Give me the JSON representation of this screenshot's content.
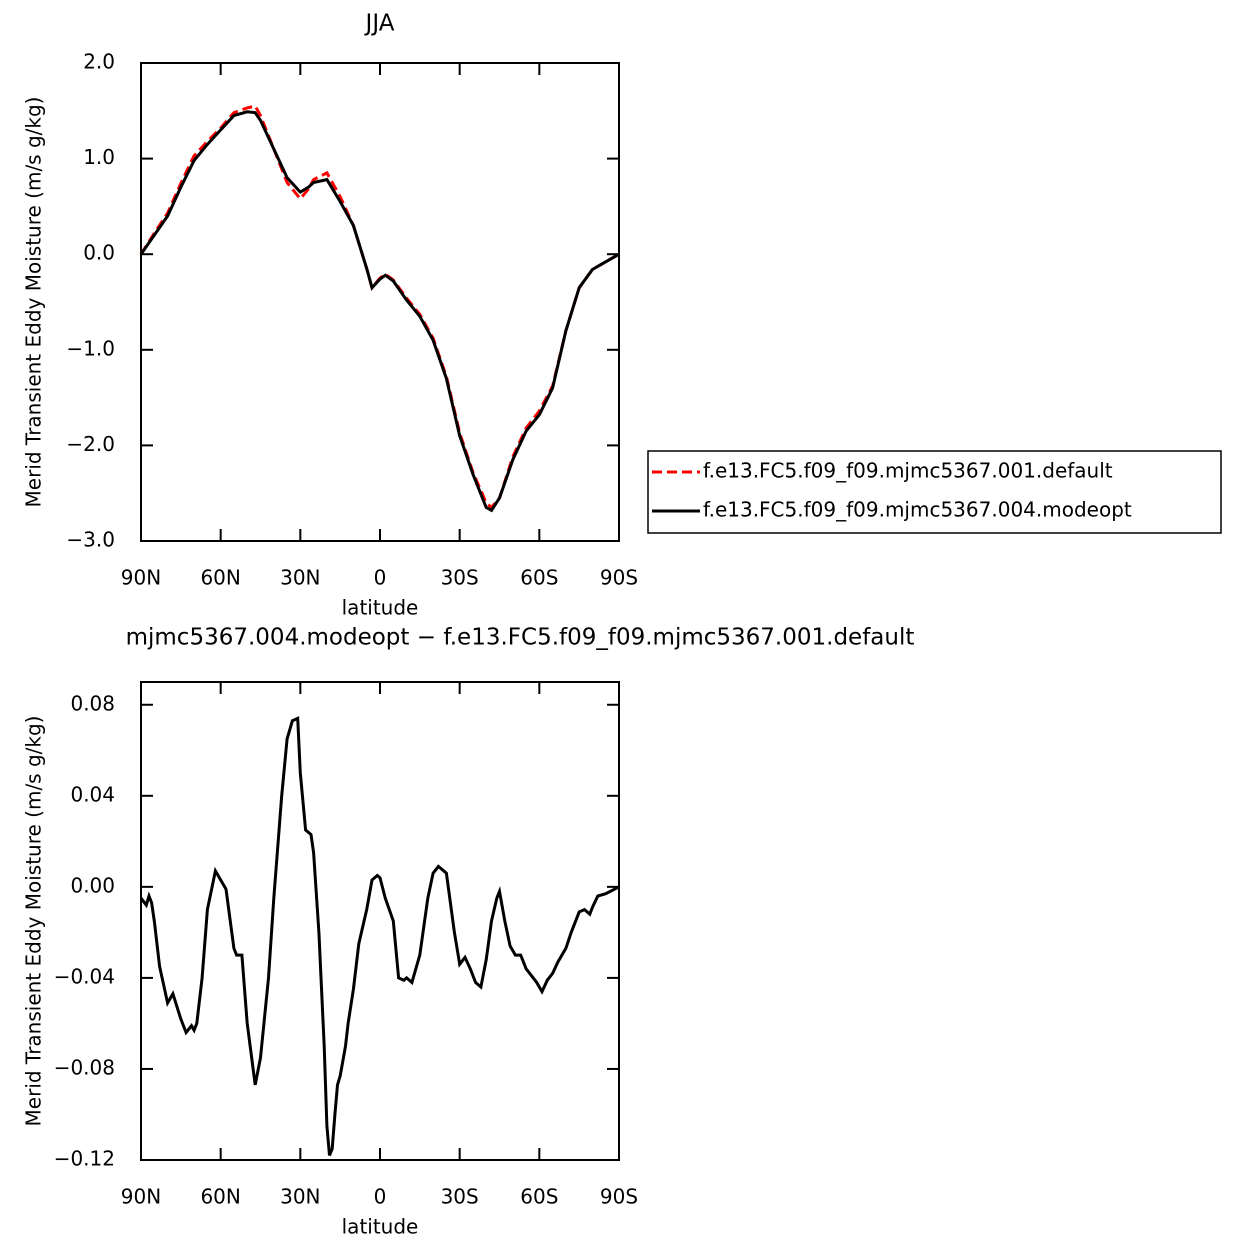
{
  "chart_data": [
    {
      "type": "line",
      "title": "JJA",
      "xlabel": "latitude",
      "ylabel": "Merid Transient Eddy Moisture (m/s g/kg)",
      "xlim": [
        90,
        -90
      ],
      "ylim": [
        -3.0,
        2.0
      ],
      "xticks": [
        {
          "value": 90,
          "label": "90N"
        },
        {
          "value": 60,
          "label": "60N"
        },
        {
          "value": 30,
          "label": "30N"
        },
        0,
        {
          "value": -30,
          "label": "30S"
        },
        {
          "value": -60,
          "label": "60S"
        },
        {
          "value": -90,
          "label": "90S"
        }
      ],
      "yticks": [
        {
          "value": 2.0,
          "label": "2.0"
        },
        {
          "value": 1.0,
          "label": "1.0"
        },
        {
          "value": 0.0,
          "label": "0.0"
        },
        {
          "value": -1.0,
          "label": "−1.0"
        },
        {
          "value": -2.0,
          "label": "−2.0"
        },
        {
          "value": -3.0,
          "label": "−3.0"
        }
      ],
      "legend": "right",
      "x": [
        90,
        85,
        80,
        75,
        70,
        65,
        60,
        55,
        50,
        47,
        45,
        40,
        35,
        30,
        27,
        25,
        20,
        15,
        10,
        5,
        3,
        0,
        -2,
        -5,
        -10,
        -15,
        -20,
        -25,
        -30,
        -35,
        -40,
        -42,
        -45,
        -50,
        -55,
        -60,
        -65,
        -70,
        -75,
        -80,
        -85,
        -90
      ],
      "series": [
        {
          "name": "f.e13.FC5.f09_f09.mjmc5367.001.default",
          "color": "#ff0000",
          "line_style": "dashed",
          "values": [
            0,
            0.22,
            0.43,
            0.74,
            1.03,
            1.18,
            1.32,
            1.48,
            1.53,
            1.55,
            1.45,
            1.1,
            0.75,
            0.58,
            0.68,
            0.78,
            0.85,
            0.6,
            0.3,
            -0.15,
            -0.35,
            -0.25,
            -0.21,
            -0.27,
            -0.46,
            -0.63,
            -0.88,
            -1.28,
            -1.87,
            -2.28,
            -2.6,
            -2.65,
            -2.55,
            -2.12,
            -1.82,
            -1.64,
            -1.38,
            -0.8,
            -0.35,
            -0.16,
            -0.08,
            0
          ]
        },
        {
          "name": "f.e13.FC5.f09_f09.mjmc5367.004.modeopt",
          "color": "#000000",
          "line_style": "solid",
          "values": [
            0,
            0.2,
            0.4,
            0.7,
            0.98,
            1.15,
            1.3,
            1.45,
            1.49,
            1.48,
            1.4,
            1.1,
            0.8,
            0.65,
            0.7,
            0.75,
            0.78,
            0.55,
            0.3,
            -0.15,
            -0.35,
            -0.26,
            -0.22,
            -0.28,
            -0.48,
            -0.65,
            -0.9,
            -1.3,
            -1.9,
            -2.3,
            -2.65,
            -2.68,
            -2.55,
            -2.15,
            -1.85,
            -1.68,
            -1.4,
            -0.8,
            -0.35,
            -0.16,
            -0.08,
            0
          ]
        }
      ]
    },
    {
      "type": "line",
      "title": "mjmc5367.004.modeopt − f.e13.FC5.f09_f09.mjmc5367.001.default",
      "xlabel": "latitude",
      "ylabel": "Merid Transient Eddy Moisture (m/s g/kg)",
      "xlim": [
        90,
        -90
      ],
      "ylim": [
        -0.12,
        0.09
      ],
      "xticks": [
        {
          "value": 90,
          "label": "90N"
        },
        {
          "value": 60,
          "label": "60N"
        },
        {
          "value": 30,
          "label": "30N"
        },
        0,
        {
          "value": -30,
          "label": "30S"
        },
        {
          "value": -60,
          "label": "60S"
        },
        {
          "value": -90,
          "label": "90S"
        }
      ],
      "yticks": [
        {
          "value": 0.08,
          "label": "0.08"
        },
        {
          "value": 0.04,
          "label": "0.04"
        },
        {
          "value": 0.0,
          "label": "0.00"
        },
        {
          "value": -0.04,
          "label": "−0.04"
        },
        {
          "value": -0.08,
          "label": "−0.08"
        },
        {
          "value": -0.12,
          "label": "−0.12"
        }
      ],
      "x": [
        90,
        88,
        87,
        86,
        85,
        83,
        80,
        78,
        75,
        73,
        71,
        70,
        69,
        67,
        65,
        62,
        60,
        58,
        55,
        54,
        52,
        50,
        47,
        45,
        42,
        40,
        37,
        35,
        33,
        31,
        30,
        28,
        26,
        25,
        23,
        21,
        20,
        19,
        18,
        17,
        16,
        15,
        13,
        12,
        10,
        8,
        5,
        3,
        1,
        0,
        -2,
        -5,
        -7,
        -9,
        -10,
        -12,
        -15,
        -18,
        -20,
        -22,
        -25,
        -28,
        -30,
        -32,
        -34,
        -36,
        -38,
        -40,
        -42,
        -44,
        -45,
        -47,
        -49,
        -51,
        -53,
        -55,
        -57,
        -59,
        -61,
        -63,
        -65,
        -67,
        -70,
        -72,
        -75,
        -77,
        -79,
        -80,
        -82,
        -85,
        -90
      ],
      "series": [
        {
          "name": null,
          "color": "#000000",
          "line_style": "solid",
          "values": [
            -0.005,
            -0.008,
            -0.004,
            -0.007,
            -0.015,
            -0.035,
            -0.051,
            -0.047,
            -0.058,
            -0.064,
            -0.061,
            -0.063,
            -0.06,
            -0.04,
            -0.01,
            0.007,
            0.003,
            -0.001,
            -0.027,
            -0.03,
            -0.03,
            -0.06,
            -0.087,
            -0.075,
            -0.04,
            -0.005,
            0.04,
            0.065,
            0.073,
            0.074,
            0.05,
            0.025,
            0.023,
            0.015,
            -0.02,
            -0.07,
            -0.105,
            -0.118,
            -0.115,
            -0.1,
            -0.087,
            -0.083,
            -0.07,
            -0.06,
            -0.045,
            -0.025,
            -0.01,
            0.003,
            0.005,
            0.004,
            -0.005,
            -0.015,
            -0.04,
            -0.041,
            -0.04,
            -0.042,
            -0.03,
            -0.005,
            0.006,
            0.009,
            0.006,
            -0.02,
            -0.034,
            -0.031,
            -0.036,
            -0.042,
            -0.044,
            -0.032,
            -0.015,
            -0.005,
            -0.002,
            -0.015,
            -0.026,
            -0.03,
            -0.03,
            -0.036,
            -0.039,
            -0.042,
            -0.046,
            -0.041,
            -0.038,
            -0.033,
            -0.027,
            -0.02,
            -0.011,
            -0.01,
            -0.012,
            -0.009,
            -0.004,
            -0.003,
            0
          ]
        }
      ]
    }
  ]
}
